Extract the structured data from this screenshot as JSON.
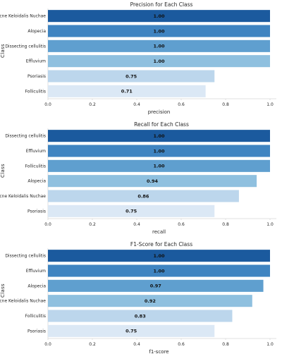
{
  "chart_data": [
    {
      "type": "bar",
      "orientation": "horizontal",
      "title": "Precision for Each Class",
      "xlabel": "precision",
      "ylabel": "Class",
      "categories": [
        "Acne Keloidalis Nuchae",
        "Alopecia",
        "Dissecting cellulitis",
        "Effluvium",
        "Psoriasis",
        "Folliculitis"
      ],
      "values": [
        1.0,
        1.0,
        1.0,
        1.0,
        0.75,
        0.71
      ],
      "value_labels": [
        "1.00",
        "1.00",
        "1.00",
        "1.00",
        "0.75",
        "0.71"
      ],
      "xlim": [
        0,
        1.0
      ],
      "xticks": [
        "0.0",
        "0.2",
        "0.4",
        "0.6",
        "0.8",
        "1.0"
      ],
      "colors": [
        "#1b5a9e",
        "#3f84c1",
        "#5f9fcf",
        "#8fc0df",
        "#bcd6ec",
        "#dbe8f5"
      ],
      "grid": false,
      "legend": "none"
    },
    {
      "type": "bar",
      "orientation": "horizontal",
      "title": "Recall for Each Class",
      "xlabel": "recall",
      "ylabel": "Class",
      "categories": [
        "Dissecting cellulitis",
        "Effluvium",
        "Folliculitis",
        "Alopecia",
        "Acne Keloidalis Nuchae",
        "Psoriasis"
      ],
      "values": [
        1.0,
        1.0,
        1.0,
        0.94,
        0.86,
        0.75
      ],
      "value_labels": [
        "1.00",
        "1.00",
        "1.00",
        "0.94",
        "0.86",
        "0.75"
      ],
      "xlim": [
        0,
        1.0
      ],
      "xticks": [
        "0.0",
        "0.2",
        "0.4",
        "0.6",
        "0.8",
        "1.0"
      ],
      "colors": [
        "#1b5a9e",
        "#3f84c1",
        "#5f9fcf",
        "#8fc0df",
        "#bcd6ec",
        "#dbe8f5"
      ],
      "grid": false,
      "legend": "none"
    },
    {
      "type": "bar",
      "orientation": "horizontal",
      "title": "F1-Score for Each Class",
      "xlabel": "f1-score",
      "ylabel": "Class",
      "categories": [
        "Dissecting cellulitis",
        "Effluvium",
        "Alopecia",
        "Acne Keloidalis Nuchae",
        "Folliculitis",
        "Psoriasis"
      ],
      "values": [
        1.0,
        1.0,
        0.97,
        0.92,
        0.83,
        0.75
      ],
      "value_labels": [
        "1.00",
        "1.00",
        "0.97",
        "0.92",
        "0.83",
        "0.75"
      ],
      "xlim": [
        0,
        1.0
      ],
      "xticks": [
        "0.0",
        "0.2",
        "0.4",
        "0.6",
        "0.8",
        "1.0"
      ],
      "colors": [
        "#1b5a9e",
        "#3f84c1",
        "#5f9fcf",
        "#8fc0df",
        "#bcd6ec",
        "#dbe8f5"
      ],
      "grid": false,
      "legend": "none"
    }
  ]
}
